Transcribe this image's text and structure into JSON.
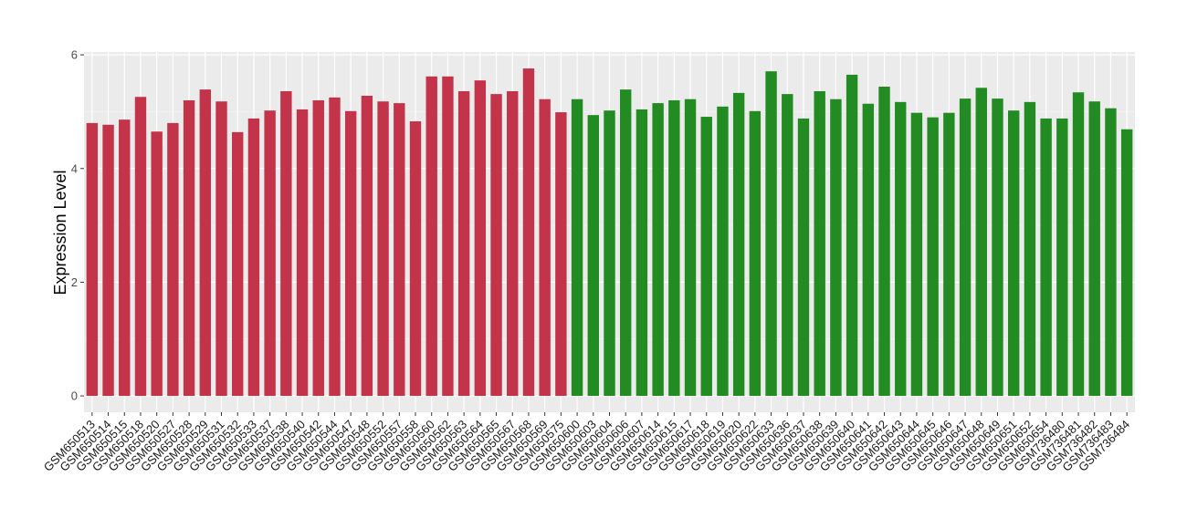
{
  "chart_data": {
    "type": "bar",
    "ylabel": "Expression Level",
    "categories": [
      "GSM650513",
      "GSM650514",
      "GSM650515",
      "GSM650518",
      "GSM650520",
      "GSM650527",
      "GSM650528",
      "GSM650529",
      "GSM650531",
      "GSM650532",
      "GSM650533",
      "GSM650537",
      "GSM650538",
      "GSM650540",
      "GSM650542",
      "GSM650544",
      "GSM650547",
      "GSM650548",
      "GSM650552",
      "GSM650557",
      "GSM650558",
      "GSM650560",
      "GSM650562",
      "GSM650563",
      "GSM650564",
      "GSM650565",
      "GSM650567",
      "GSM650568",
      "GSM650569",
      "GSM650575",
      "GSM650600",
      "GSM650603",
      "GSM650604",
      "GSM650606",
      "GSM650607",
      "GSM650614",
      "GSM650615",
      "GSM650617",
      "GSM650618",
      "GSM650619",
      "GSM650620",
      "GSM650622",
      "GSM650633",
      "GSM650636",
      "GSM650637",
      "GSM650638",
      "GSM650639",
      "GSM650640",
      "GSM650641",
      "GSM650642",
      "GSM650643",
      "GSM650644",
      "GSM650645",
      "GSM650646",
      "GSM650647",
      "GSM650648",
      "GSM650649",
      "GSM650651",
      "GSM650652",
      "GSM650654",
      "GSM736480",
      "GSM736481",
      "GSM736482",
      "GSM736483",
      "GSM736484"
    ],
    "values": [
      4.8,
      4.77,
      4.86,
      5.26,
      4.65,
      4.8,
      5.2,
      5.39,
      5.18,
      4.64,
      4.88,
      5.02,
      5.36,
      5.04,
      5.2,
      5.25,
      5.01,
      5.28,
      5.18,
      5.15,
      4.83,
      5.62,
      5.62,
      5.36,
      5.55,
      5.31,
      5.36,
      5.76,
      5.22,
      4.99,
      5.22,
      4.94,
      5.02,
      5.39,
      5.04,
      5.15,
      5.2,
      5.22,
      4.91,
      5.09,
      5.33,
      5.01,
      5.71,
      5.31,
      4.88,
      5.36,
      5.22,
      5.65,
      5.14,
      5.44,
      5.17,
      4.98,
      4.9,
      4.98,
      5.23,
      5.42,
      5.23,
      5.02,
      5.17,
      4.88,
      4.88,
      5.34,
      5.18,
      5.06,
      4.69
    ],
    "colors": [
      "#c3334a",
      "#c3334a",
      "#c3334a",
      "#c3334a",
      "#c3334a",
      "#c3334a",
      "#c3334a",
      "#c3334a",
      "#c3334a",
      "#c3334a",
      "#c3334a",
      "#c3334a",
      "#c3334a",
      "#c3334a",
      "#c3334a",
      "#c3334a",
      "#c3334a",
      "#c3334a",
      "#c3334a",
      "#c3334a",
      "#c3334a",
      "#c3334a",
      "#c3334a",
      "#c3334a",
      "#c3334a",
      "#c3334a",
      "#c3334a",
      "#c3334a",
      "#c3334a",
      "#c3334a",
      "#228b22",
      "#228b22",
      "#228b22",
      "#228b22",
      "#228b22",
      "#228b22",
      "#228b22",
      "#228b22",
      "#228b22",
      "#228b22",
      "#228b22",
      "#228b22",
      "#228b22",
      "#228b22",
      "#228b22",
      "#228b22",
      "#228b22",
      "#228b22",
      "#228b22",
      "#228b22",
      "#228b22",
      "#228b22",
      "#228b22",
      "#228b22",
      "#228b22",
      "#228b22",
      "#228b22",
      "#228b22",
      "#228b22",
      "#228b22",
      "#228b22",
      "#228b22",
      "#228b22",
      "#228b22",
      "#228b22"
    ],
    "ylim": [
      -0.288,
      6.05
    ],
    "yticks": [
      0,
      2,
      4,
      6
    ],
    "grid": true
  }
}
